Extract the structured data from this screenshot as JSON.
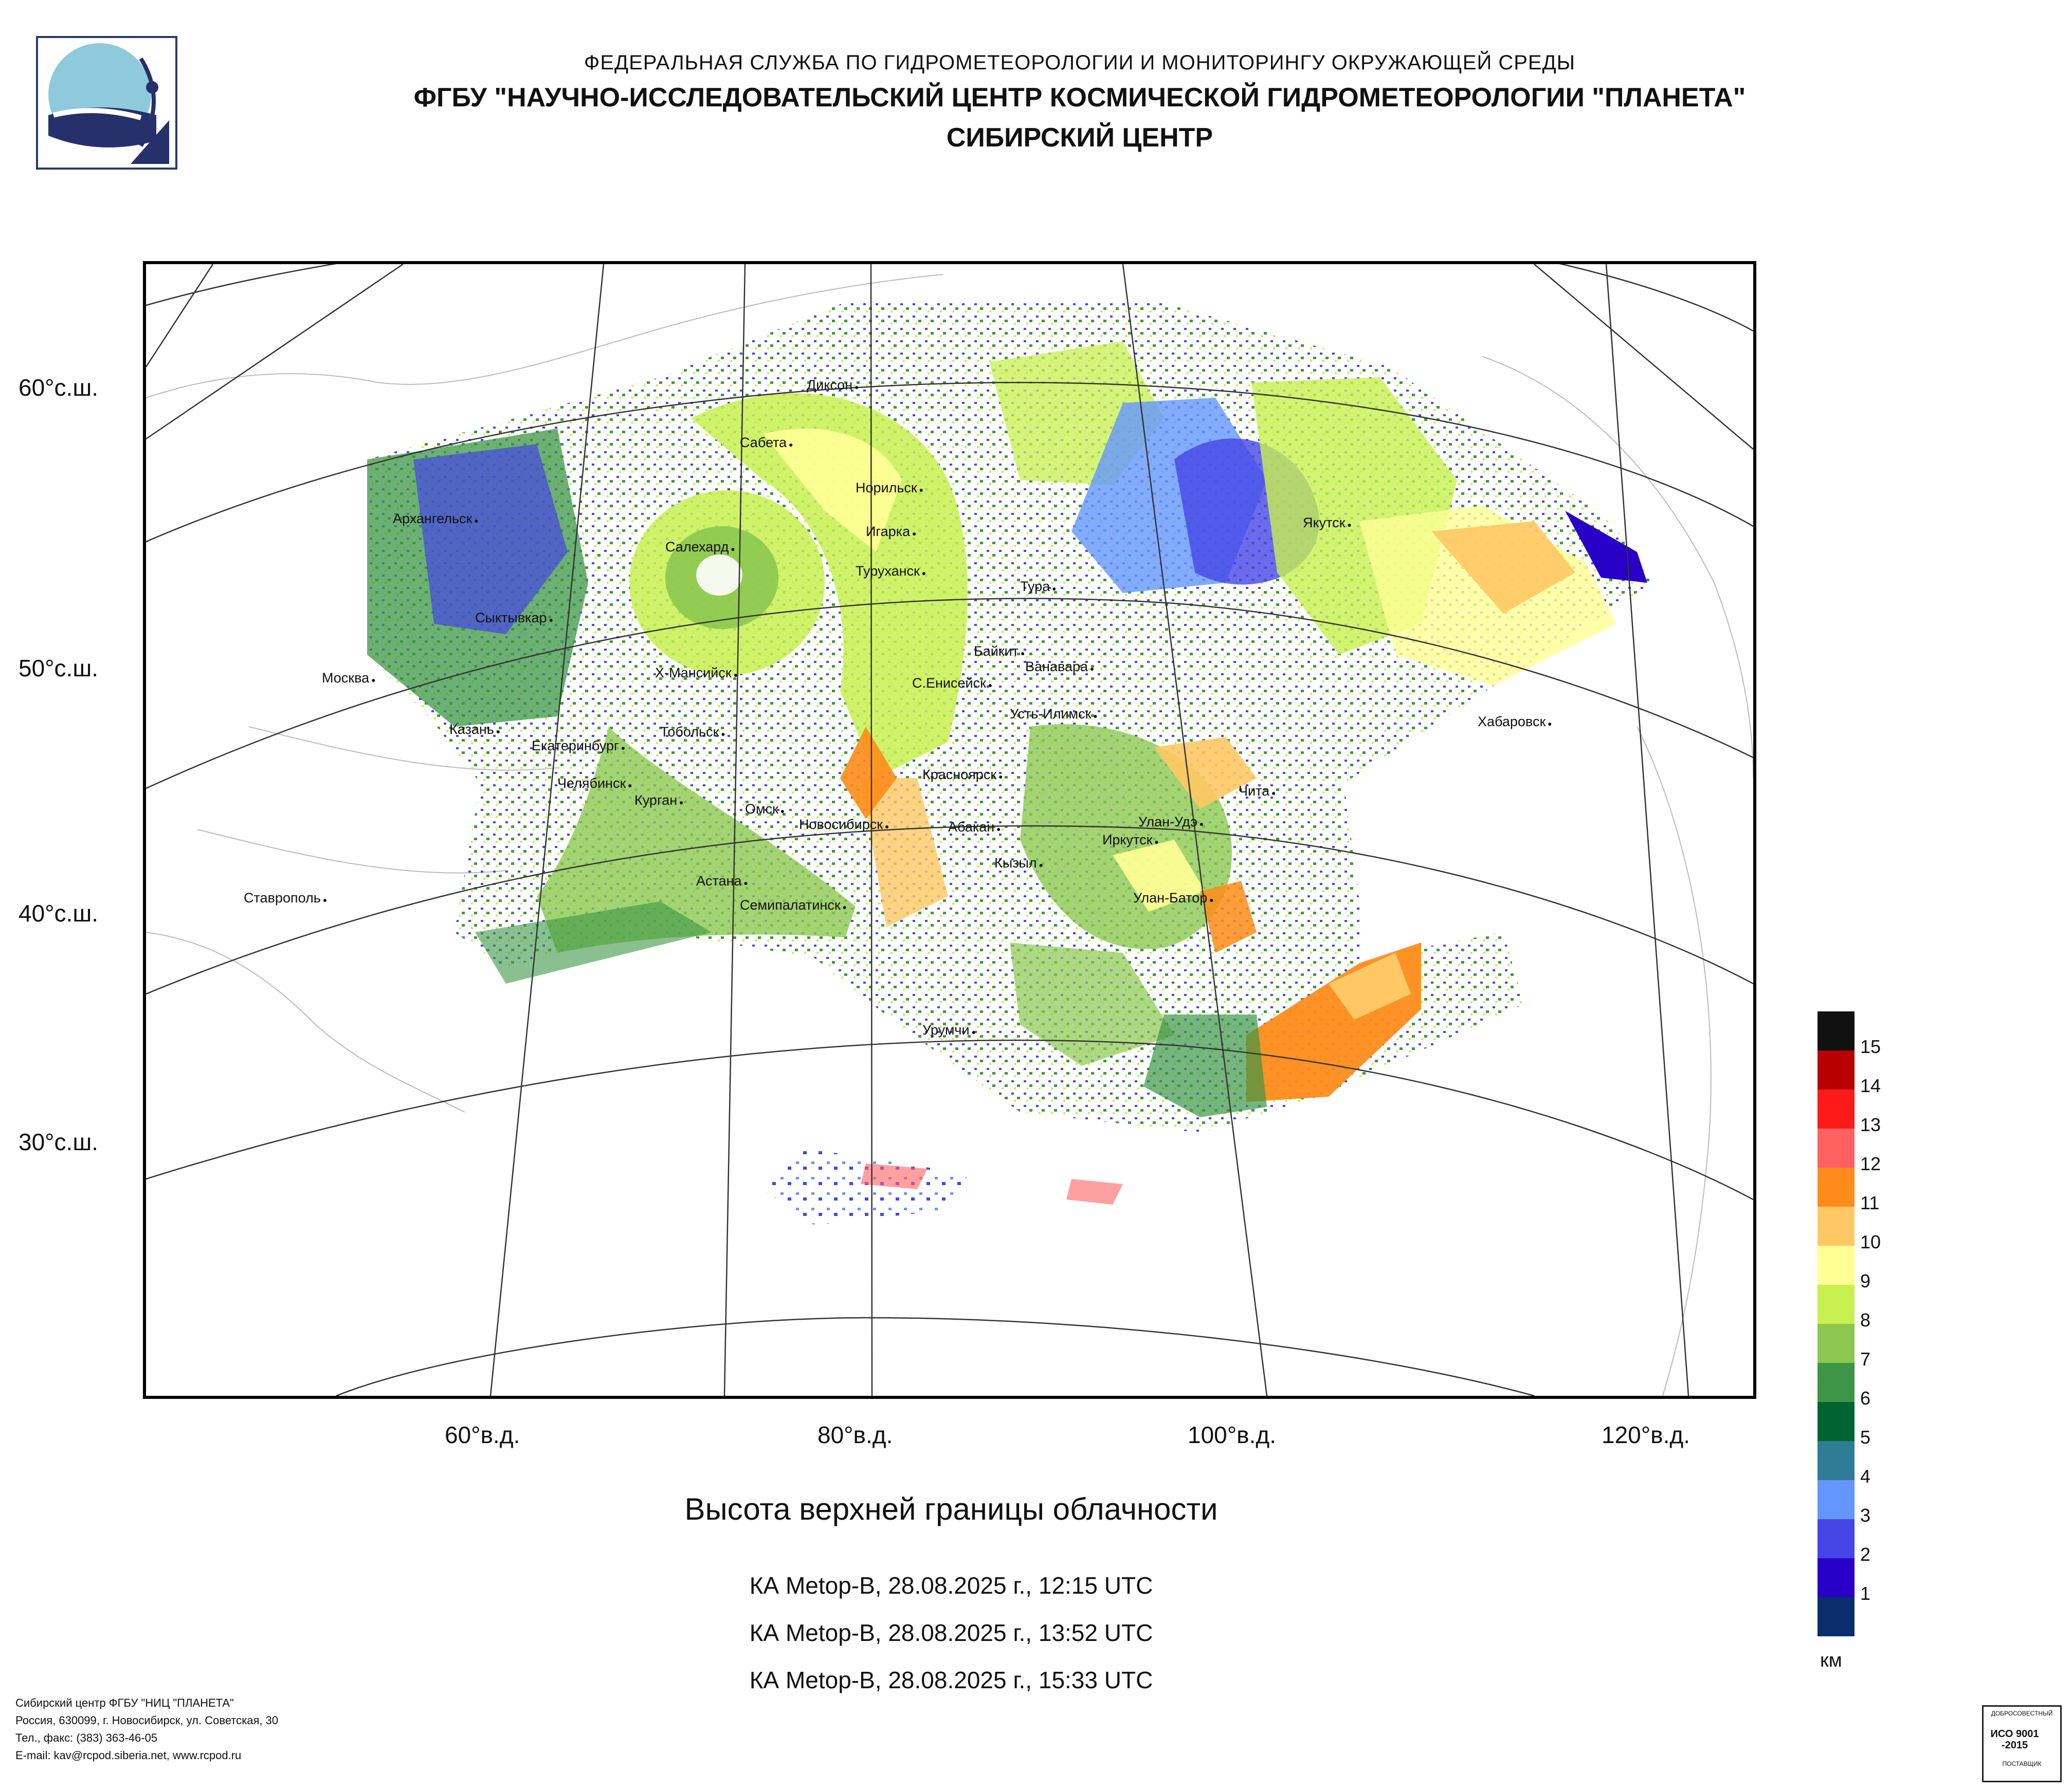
{
  "header": {
    "line1": "ФЕДЕРАЛЬНАЯ СЛУЖБА ПО ГИДРОМЕТЕОРОЛОГИИ И МОНИТОРИНГУ ОКРУЖАЮЩЕЙ СРЕДЫ",
    "line2": "ФГБУ \"НАУЧНО-ИССЛЕДОВАТЕЛЬСКИЙ ЦЕНТР КОСМИЧЕСКОЙ ГИДРОМЕТЕОРОЛОГИИ \"ПЛАНЕТА\"",
    "line3": "СИБИРСКИЙ ЦЕНТР"
  },
  "map": {
    "lat_labels": [
      "60°с.ш.",
      "50°с.ш.",
      "40°с.ш.",
      "30°с.ш."
    ],
    "lon_labels": [
      "60°в.д.",
      "80°в.д.",
      "100°в.д.",
      "120°в.д."
    ],
    "cities": [
      "Диксон",
      "Сабета",
      "Норильск",
      "Архангельск",
      "Салехард",
      "Игарка",
      "Туруханск",
      "Тура",
      "Якутск",
      "Сыктывкар",
      "Байкит",
      "Ванавара",
      "Москва",
      "Х-Мансийск",
      "С.Енисейск",
      "Усть-Илимск",
      "Казань",
      "Тобольск",
      "Екатеринбург",
      "Хабаровск",
      "Челябинск",
      "Курган",
      "Красноярск",
      "Омск",
      "Чита",
      "Новосибирск",
      "Абакан",
      "Улан-Удэ",
      "Иркутск",
      "Кызыл",
      "Ставрополь",
      "Астана",
      "Улан-Батор",
      "Семипалатинск",
      "Урумчи"
    ]
  },
  "legend": {
    "unit": "км",
    "levels": [
      "15",
      "14",
      "13",
      "12",
      "11",
      "10",
      "9",
      "8",
      "7",
      "6",
      "5",
      "4",
      "3",
      "2",
      "1"
    ],
    "colors": [
      "#111111",
      "#b80000",
      "#ff1a1a",
      "#ff6060",
      "#ff8c1a",
      "#ffc864",
      "#ffff96",
      "#c8f050",
      "#8cc850",
      "#3c9646",
      "#006432",
      "#2e7c96",
      "#6496ff",
      "#4646e6",
      "#2800c8",
      "#0a2d6e"
    ]
  },
  "title": "Высота верхней границы облачности",
  "passes": [
    "КА Metop-B, 28.08.2025 г., 12:15 UTC",
    "КА Metop-B, 28.08.2025 г., 13:52 UTC",
    "КА Metop-B, 28.08.2025 г., 15:33 UTC"
  ],
  "footer": {
    "line1": "Сибирский центр ФГБУ \"НИЦ \"ПЛАНЕТА\"",
    "line2": "Россия, 630099, г. Новосибирск, ул. Советская, 30",
    "line3": "Тел., факс: (383) 363-46-05",
    "line4": "E-mail: kav@rcpod.siberia.net, www.rcpod.ru"
  },
  "iso_badge": {
    "top": "ДОБРОСОВЕСТНЫЙ",
    "mid": "ИСО 9001 -2015",
    "bottom": "ПОСТАВЩИК"
  }
}
